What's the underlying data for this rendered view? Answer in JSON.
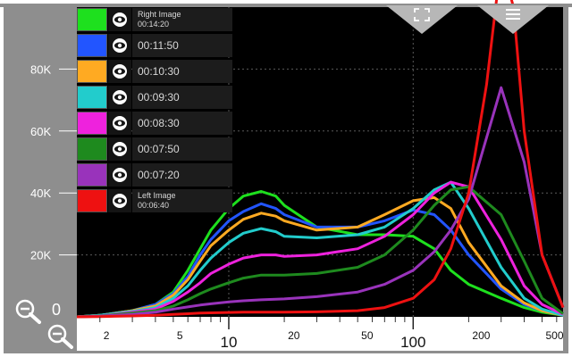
{
  "chart_data": {
    "type": "line",
    "x_scale": "log",
    "xlim": [
      1.5,
      650
    ],
    "ylim": [
      0,
      100000
    ],
    "grid": true,
    "legend_position": "top-left",
    "x_ticks": [
      {
        "value": 2,
        "label": "2",
        "size": "small"
      },
      {
        "value": 5,
        "label": "5",
        "size": "small"
      },
      {
        "value": 10,
        "label": "10",
        "size": "large"
      },
      {
        "value": 20,
        "label": "20",
        "size": "small"
      },
      {
        "value": 50,
        "label": "50",
        "size": "small"
      },
      {
        "value": 100,
        "label": "100",
        "size": "large"
      },
      {
        "value": 200,
        "label": "200",
        "size": "small"
      },
      {
        "value": 500,
        "label": "500",
        "size": "small"
      }
    ],
    "y_ticks": [
      {
        "value": 0,
        "label": "0"
      },
      {
        "value": 20000,
        "label": "20K"
      },
      {
        "value": 40000,
        "label": "40K"
      },
      {
        "value": 60000,
        "label": "60K"
      },
      {
        "value": 80000,
        "label": "80K"
      }
    ],
    "series": [
      {
        "name": "Right Image\n00:14:20",
        "color": "#1ee01e",
        "x": [
          1.5,
          2,
          3,
          4,
          5,
          6,
          7,
          8,
          10,
          12,
          15,
          18,
          20,
          30,
          50,
          70,
          100,
          130,
          160,
          200,
          300,
          400,
          500,
          650
        ],
        "y": [
          0,
          500,
          2000,
          4000,
          8000,
          15000,
          22000,
          28000,
          35000,
          39000,
          40500,
          39000,
          36000,
          29000,
          26500,
          26500,
          26000,
          22000,
          15000,
          10500,
          6000,
          3000,
          1500,
          500
        ]
      },
      {
        "name": "00:11:50",
        "color": "#2255ff",
        "x": [
          1.5,
          2,
          3,
          4,
          5,
          6,
          7,
          8,
          10,
          12,
          15,
          18,
          20,
          30,
          50,
          70,
          100,
          130,
          160,
          200,
          300,
          400,
          500,
          650
        ],
        "y": [
          0,
          500,
          2000,
          4000,
          7500,
          13000,
          20000,
          25000,
          31000,
          34000,
          36500,
          35000,
          33000,
          29000,
          29000,
          31000,
          34500,
          33000,
          28000,
          20000,
          9000,
          4000,
          2000,
          500
        ]
      },
      {
        "name": "00:10:30",
        "color": "#ffaa22",
        "x": [
          1.5,
          2,
          3,
          4,
          5,
          6,
          7,
          8,
          10,
          12,
          15,
          18,
          20,
          30,
          50,
          70,
          100,
          130,
          160,
          200,
          300,
          400,
          500,
          650
        ],
        "y": [
          0,
          500,
          2000,
          3500,
          7000,
          12000,
          18000,
          23000,
          28000,
          31500,
          33500,
          32500,
          31000,
          28000,
          29000,
          33000,
          37500,
          38500,
          35000,
          24000,
          10000,
          4500,
          2000,
          500
        ]
      },
      {
        "name": "00:09:30",
        "color": "#22cccc",
        "x": [
          1.5,
          2,
          3,
          4,
          5,
          6,
          7,
          8,
          10,
          12,
          15,
          18,
          20,
          30,
          50,
          70,
          100,
          130,
          160,
          200,
          300,
          400,
          500,
          650
        ],
        "y": [
          0,
          500,
          1800,
          3000,
          6000,
          10000,
          15000,
          19000,
          24000,
          27000,
          28500,
          27500,
          26000,
          25500,
          26500,
          29000,
          35000,
          41000,
          43500,
          35000,
          16000,
          6000,
          2500,
          500
        ]
      },
      {
        "name": "00:08:30",
        "color": "#ee22dd",
        "x": [
          1.5,
          2,
          3,
          4,
          5,
          6,
          7,
          8,
          10,
          12,
          15,
          18,
          20,
          30,
          50,
          70,
          100,
          130,
          160,
          200,
          300,
          400,
          500,
          650
        ],
        "y": [
          0,
          300,
          1500,
          2500,
          5000,
          8000,
          11000,
          14000,
          17000,
          19000,
          20000,
          20000,
          19500,
          20000,
          22000,
          26000,
          33000,
          40000,
          43500,
          42000,
          25000,
          10000,
          4000,
          800
        ]
      },
      {
        "name": "00:07:50",
        "color": "#1e8a1e",
        "x": [
          1.5,
          2,
          3,
          4,
          5,
          6,
          7,
          8,
          10,
          12,
          15,
          18,
          20,
          30,
          50,
          70,
          100,
          130,
          160,
          200,
          300,
          400,
          500,
          650
        ],
        "y": [
          0,
          300,
          1200,
          2000,
          3500,
          5500,
          7500,
          9000,
          11000,
          12500,
          13500,
          13500,
          13500,
          14000,
          16000,
          20000,
          28000,
          36000,
          41000,
          42000,
          33000,
          18000,
          6000,
          1000
        ]
      },
      {
        "name": "00:07:20",
        "color": "#9933bb",
        "x": [
          1.5,
          2,
          3,
          4,
          5,
          6,
          7,
          8,
          10,
          12,
          15,
          18,
          20,
          30,
          50,
          70,
          100,
          130,
          160,
          200,
          300,
          400,
          500,
          650
        ],
        "y": [
          0,
          200,
          800,
          1500,
          2500,
          3200,
          3800,
          4200,
          4800,
          5200,
          5500,
          5700,
          5800,
          6500,
          8000,
          10500,
          15000,
          21000,
          28000,
          38000,
          74000,
          50000,
          20000,
          3000
        ]
      },
      {
        "name": "Left Image\n00:06:40",
        "color": "#ee1111",
        "x": [
          1.5,
          2,
          3,
          4,
          5,
          6,
          7,
          8,
          10,
          12,
          15,
          18,
          20,
          30,
          50,
          70,
          100,
          130,
          160,
          200,
          250,
          300,
          350,
          400,
          500,
          650
        ],
        "y": [
          0,
          100,
          300,
          500,
          800,
          1000,
          1200,
          1300,
          1400,
          1500,
          1500,
          1500,
          1500,
          1600,
          2000,
          3000,
          6000,
          12000,
          22000,
          40000,
          75000,
          115000,
          100000,
          60000,
          20000,
          3000
        ]
      }
    ]
  },
  "legend": [
    {
      "color": "#1ee01e",
      "line1": "Right Image",
      "line2": "00:14:20"
    },
    {
      "color": "#2255ff",
      "line1": "00:11:50",
      "line2": ""
    },
    {
      "color": "#ffaa22",
      "line1": "00:10:30",
      "line2": ""
    },
    {
      "color": "#22cccc",
      "line1": "00:09:30",
      "line2": ""
    },
    {
      "color": "#ee22dd",
      "line1": "00:08:30",
      "line2": ""
    },
    {
      "color": "#1e8a1e",
      "line1": "00:07:50",
      "line2": ""
    },
    {
      "color": "#9933bb",
      "line1": "00:07:20",
      "line2": ""
    },
    {
      "color": "#ee1111",
      "line1": "Left Image",
      "line2": "00:06:40"
    }
  ],
  "controls": {
    "fullscreen_icon": "fullscreen-icon",
    "menu_icon": "menu-icon",
    "zoom_out_y_icon": "zoom-out-icon",
    "zoom_out_x_icon": "zoom-out-icon"
  },
  "colors": {
    "plot_background": "#000000",
    "frame": "#8e8e8e",
    "grid": "#5a5a5a",
    "triangle_buttons": "#b7b7b7"
  }
}
